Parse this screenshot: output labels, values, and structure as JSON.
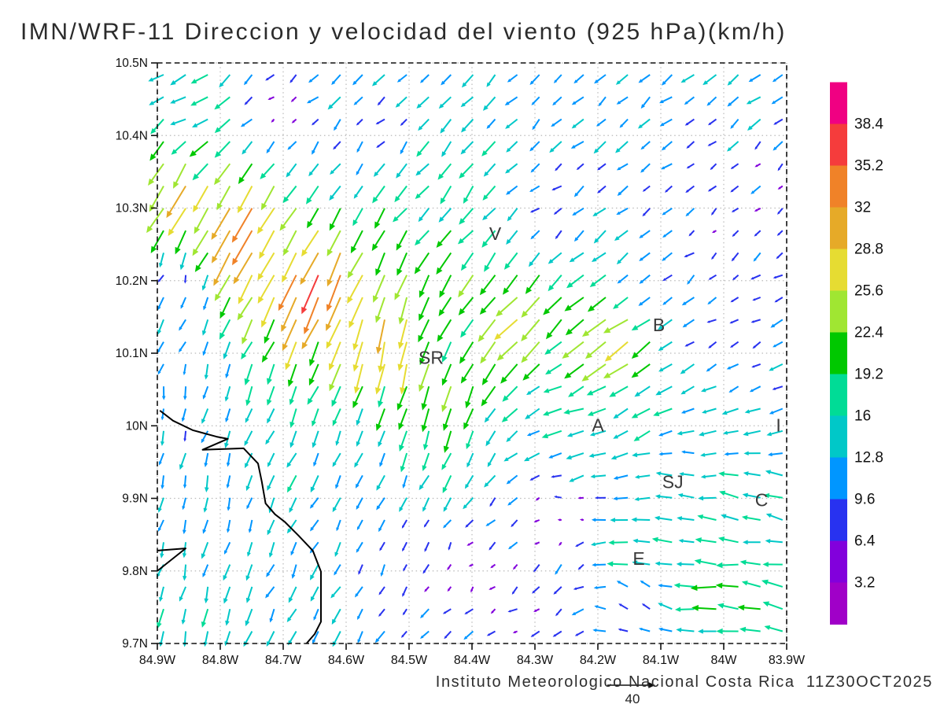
{
  "header": {
    "title": "IMN/WRF-11 Direccion y velocidad del viento (925 hPa)(km/h)"
  },
  "footer": {
    "caption": "Instituto Meteorologico Nacional Costa Rica  11Z30OCT2025",
    "ref_label": "40"
  },
  "chart_data": {
    "type": "quiver",
    "title": "IMN/WRF-11 Direccion y velocidad del viento (925 hPa)(km/h)",
    "units": "km/h",
    "pressure_level": "925 hPa",
    "lon_min": -84.9,
    "lon_max": -83.9,
    "lat_min": 9.7,
    "lat_max": 10.5,
    "x_tick_labels": [
      "84.9W",
      "84.8W",
      "84.7W",
      "84.6W",
      "84.5W",
      "84.4W",
      "84.3W",
      "84.2W",
      "84.1W",
      "84W",
      "83.9W"
    ],
    "y_tick_labels": [
      "10.5N",
      "10.4N",
      "10.3N",
      "10.2N",
      "10.1N",
      "10N",
      "9.9N",
      "9.8N",
      "9.7N"
    ],
    "grid": {
      "cols": 29,
      "rows": 26
    },
    "speed_levels_kmh": [
      3.2,
      6.4,
      9.6,
      12.8,
      16,
      19.2,
      22.4,
      25.6,
      28.8,
      32,
      35.2,
      38.4
    ],
    "palette_low_to_high": [
      "#a000c8",
      "#8200dc",
      "#2832f0",
      "#0096ff",
      "#00c8c8",
      "#00dc96",
      "#00c800",
      "#a0e632",
      "#e6dc32",
      "#e6aa28",
      "#f08228",
      "#f53c3c",
      "#f00082"
    ],
    "colorbar_labels_top_to_bottom": [
      "38.4",
      "35.2",
      "32",
      "28.8",
      "25.6",
      "22.4",
      "19.2",
      "16",
      "12.8",
      "9.6",
      "6.4",
      "3.2"
    ],
    "reference_vector_kmh": 40,
    "cities": [
      {
        "label": "V",
        "lon": -84.363,
        "lat": 10.265
      },
      {
        "label": "B",
        "lon": -84.103,
        "lat": 10.139
      },
      {
        "label": "SR",
        "lon": -84.465,
        "lat": 10.094
      },
      {
        "label": "A",
        "lon": -84.2,
        "lat": 10.001
      },
      {
        "label": "I",
        "lon": -83.913,
        "lat": 10.001
      },
      {
        "label": "SJ",
        "lon": -84.081,
        "lat": 9.923
      },
      {
        "label": "C",
        "lon": -83.94,
        "lat": 9.898
      },
      {
        "label": "E",
        "lon": -84.135,
        "lat": 9.817
      }
    ],
    "coastline_lonlat": [
      [
        -84.896,
        10.021
      ],
      [
        -84.875,
        10.007
      ],
      [
        -84.844,
        9.994
      ],
      [
        -84.806,
        9.985
      ],
      [
        -84.788,
        9.982
      ],
      [
        -84.828,
        9.967
      ],
      [
        -84.763,
        9.969
      ],
      [
        -84.74,
        9.948
      ],
      [
        -84.734,
        9.923
      ],
      [
        -84.728,
        9.893
      ],
      [
        -84.713,
        9.878
      ],
      [
        -84.698,
        9.868
      ],
      [
        -84.676,
        9.849
      ],
      [
        -84.653,
        9.828
      ],
      [
        -84.64,
        9.799
      ],
      [
        -84.64,
        9.73
      ],
      [
        -84.65,
        9.713
      ],
      [
        -84.663,
        9.7
      ]
    ],
    "gulf_spit_lonlat": [
      [
        -84.9,
        9.828
      ],
      [
        -84.855,
        9.831
      ],
      [
        -84.9,
        9.8
      ]
    ],
    "wind_control_points_format": [
      "lon",
      "lat",
      "u_kmh_east",
      "v_kmh_north"
    ],
    "wind_control_points": [
      [
        -84.87,
        10.49,
        -13,
        -7
      ],
      [
        -84.6,
        10.48,
        -10,
        -9
      ],
      [
        -84.3,
        10.48,
        -8,
        -8
      ],
      [
        -83.95,
        10.48,
        -10,
        -8
      ],
      [
        -84.85,
        10.43,
        -13,
        -6
      ],
      [
        -84.7,
        10.44,
        -3,
        -3
      ],
      [
        -84.55,
        10.42,
        -6,
        -6
      ],
      [
        -84.84,
        10.39,
        -14,
        -10
      ],
      [
        -84.87,
        10.36,
        -12,
        -20
      ],
      [
        -84.86,
        10.33,
        -15,
        -27
      ],
      [
        -84.76,
        10.27,
        -17,
        -30
      ],
      [
        -84.63,
        10.2,
        -14,
        -33
      ],
      [
        -84.53,
        10.12,
        -4,
        -28
      ],
      [
        -84.46,
        10.05,
        -7,
        -22
      ],
      [
        -84.47,
        10.0,
        -5,
        -17
      ],
      [
        -84.44,
        10.32,
        -11,
        -13
      ],
      [
        -84.4,
        10.28,
        -11,
        -13
      ],
      [
        -84.42,
        10.22,
        -11,
        -19
      ],
      [
        -84.32,
        10.15,
        -19,
        -19
      ],
      [
        -84.16,
        10.11,
        -21,
        -15
      ],
      [
        -84.28,
        10.31,
        -6,
        -5
      ],
      [
        -84.87,
        10.2,
        -2,
        -8
      ],
      [
        -84.87,
        10.05,
        -2,
        -10
      ],
      [
        -84.08,
        10.22,
        -7,
        -6
      ],
      [
        -84.0,
        10.3,
        -4,
        -4
      ],
      [
        -83.92,
        10.32,
        -6,
        -5
      ],
      [
        -83.97,
        10.13,
        -5,
        -4
      ],
      [
        -83.92,
        10.06,
        -10,
        -5
      ],
      [
        -84.24,
        10.0,
        -15,
        -3
      ],
      [
        -84.12,
        10.03,
        -14,
        -8
      ],
      [
        -83.91,
        10.0,
        -15,
        -4
      ],
      [
        -84.08,
        9.92,
        -13,
        2
      ],
      [
        -83.94,
        9.9,
        -16,
        5
      ],
      [
        -84.26,
        9.87,
        -3,
        0
      ],
      [
        -84.14,
        9.81,
        -21,
        2
      ],
      [
        -84.02,
        9.78,
        -20,
        1
      ],
      [
        -83.91,
        9.74,
        -18,
        4
      ],
      [
        -84.13,
        9.77,
        -4,
        7
      ],
      [
        -84.27,
        9.8,
        -5,
        -9
      ],
      [
        -84.42,
        9.8,
        -3,
        -3
      ],
      [
        -84.33,
        9.73,
        -6,
        -3
      ],
      [
        -84.46,
        9.7,
        -7,
        -6
      ],
      [
        -84.52,
        9.78,
        -5,
        -8
      ],
      [
        -84.56,
        9.95,
        -5,
        -10
      ],
      [
        -84.63,
        9.75,
        -6,
        -12
      ],
      [
        -84.82,
        9.9,
        -2,
        -12
      ],
      [
        -84.86,
        9.72,
        -3,
        -15
      ]
    ],
    "direction_noise_kmh": 2.5
  }
}
